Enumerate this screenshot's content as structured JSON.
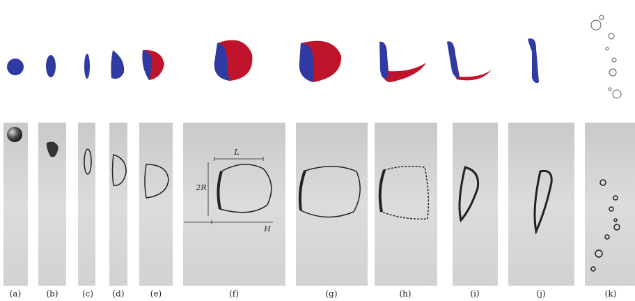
{
  "panels": [
    {
      "label": "(a)"
    },
    {
      "label": "(b)"
    },
    {
      "label": "(c)"
    },
    {
      "label": "(d)"
    },
    {
      "label": "(e)"
    },
    {
      "label": "(f)"
    },
    {
      "label": "(g)"
    },
    {
      "label": "(h)"
    },
    {
      "label": "(i)"
    },
    {
      "label": "(j)"
    },
    {
      "label": "(k)"
    }
  ],
  "annotations": {
    "length": "L",
    "diameter": "2R",
    "distance": "H"
  }
}
